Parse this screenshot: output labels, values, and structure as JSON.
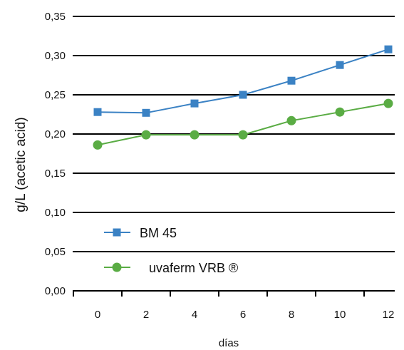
{
  "chart_data": {
    "type": "line",
    "x": [
      0,
      2,
      4,
      6,
      8,
      10,
      12
    ],
    "x_tick_labels": [
      "0",
      "2",
      "4",
      "6",
      "8",
      "10",
      "12"
    ],
    "y_tick_values": [
      0,
      0.05,
      0.1,
      0.15,
      0.2,
      0.25,
      0.3,
      0.35
    ],
    "y_tick_labels": [
      "0,00",
      "0,05",
      "0,10",
      "0,15",
      "0,20",
      "0,25",
      "0,30",
      "0,35"
    ],
    "ylim": [
      0,
      0.35
    ],
    "xlabel": "días",
    "ylabel": "g/L (acetic acid)",
    "grid": "horizontal",
    "legend_position": "bottom-left",
    "series": [
      {
        "name": "BM 45",
        "color": "#3b82c4",
        "marker": "square",
        "values": [
          0.228,
          0.227,
          0.239,
          0.25,
          0.268,
          0.288,
          0.308
        ]
      },
      {
        "name": "uvaferm VRB ®",
        "color": "#5aac44",
        "marker": "circle",
        "values": [
          0.186,
          0.199,
          0.199,
          0.199,
          0.217,
          0.228,
          0.239
        ]
      }
    ]
  }
}
